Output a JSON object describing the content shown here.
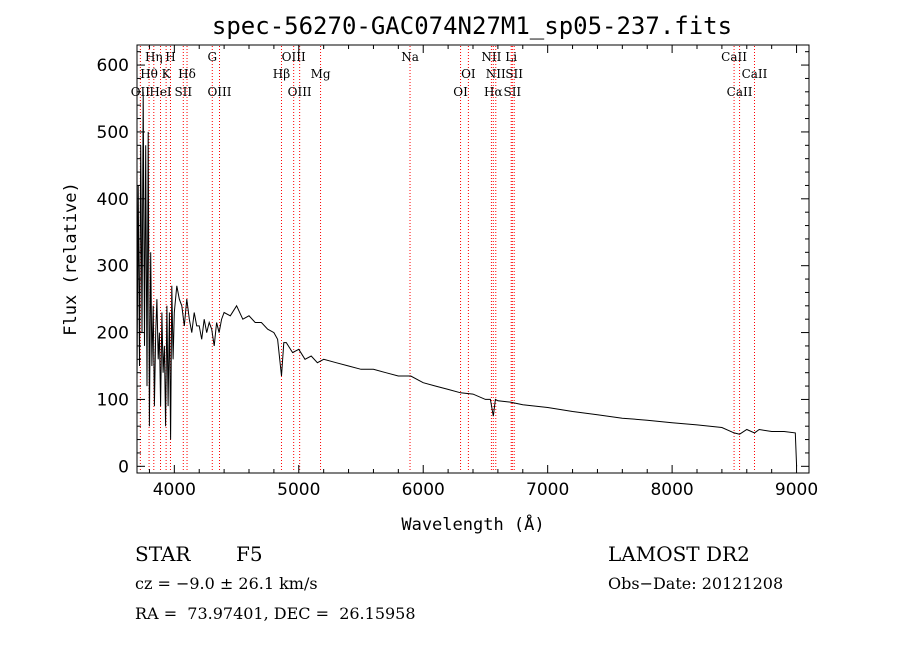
{
  "chart_data": {
    "type": "line",
    "title": "spec-56270-GAC074N27M1_sp05-237.fits",
    "xlabel": "Wavelength (Å)",
    "ylabel": "Flux (relative)",
    "xlim": [
      3700,
      9100
    ],
    "ylim": [
      -10,
      630
    ],
    "xticks": [
      4000,
      5000,
      6000,
      7000,
      8000,
      9000
    ],
    "yticks": [
      0,
      100,
      200,
      300,
      400,
      500,
      600
    ],
    "grid": false,
    "series": [
      {
        "x": [
          3700,
          3710,
          3720,
          3730,
          3740,
          3750,
          3760,
          3770,
          3780,
          3790,
          3800,
          3810,
          3820,
          3830,
          3840,
          3850,
          3860,
          3870,
          3880,
          3890,
          3900,
          3910,
          3920,
          3930,
          3940,
          3950,
          3960,
          3970,
          3980,
          3990,
          4000,
          4020,
          4040,
          4060,
          4080,
          4100,
          4120,
          4140,
          4160,
          4180,
          4200,
          4220,
          4240,
          4260,
          4280,
          4300,
          4320,
          4340,
          4360,
          4380,
          4400,
          4450,
          4500,
          4550,
          4600,
          4650,
          4700,
          4750,
          4800,
          4830,
          4861,
          4880,
          4900,
          4950,
          5000,
          5050,
          5100,
          5150,
          5200,
          5300,
          5400,
          5500,
          5600,
          5700,
          5800,
          5900,
          6000,
          6100,
          6200,
          6300,
          6400,
          6500,
          6540,
          6563,
          6580,
          6600,
          6700,
          6800,
          6900,
          7000,
          7200,
          7400,
          7600,
          7800,
          8000,
          8200,
          8400,
          8498,
          8542,
          8600,
          8662,
          8700,
          8800,
          8900,
          8990,
          9000
        ],
        "y": [
          130,
          420,
          150,
          480,
          200,
          560,
          180,
          480,
          120,
          500,
          60,
          320,
          150,
          240,
          90,
          200,
          250,
          160,
          200,
          90,
          230,
          140,
          180,
          60,
          240,
          90,
          230,
          40,
          270,
          160,
          230,
          270,
          250,
          240,
          210,
          250,
          220,
          200,
          230,
          210,
          210,
          190,
          220,
          200,
          215,
          205,
          180,
          215,
          200,
          220,
          230,
          225,
          240,
          220,
          225,
          215,
          215,
          205,
          200,
          190,
          135,
          185,
          185,
          170,
          175,
          160,
          165,
          155,
          160,
          155,
          150,
          145,
          145,
          140,
          135,
          135,
          125,
          120,
          115,
          110,
          108,
          100,
          100,
          75,
          100,
          98,
          96,
          92,
          90,
          88,
          82,
          77,
          72,
          69,
          65,
          62,
          58,
          50,
          48,
          55,
          50,
          55,
          52,
          52,
          50,
          0
        ]
      }
    ],
    "lines": [
      {
        "name": "OII",
        "wl": 3727,
        "row": 3
      },
      {
        "name": "Hθ",
        "wl": 3797,
        "row": 2
      },
      {
        "name": "Hη",
        "wl": 3835,
        "row": 1
      },
      {
        "name": "K",
        "wl": 3934,
        "row": 2
      },
      {
        "name": "HeI",
        "wl": 3889,
        "row": 3
      },
      {
        "name": "H",
        "wl": 3969,
        "row": 1
      },
      {
        "name": "SII",
        "wl": 4072,
        "row": 3
      },
      {
        "name": "Hδ",
        "wl": 4102,
        "row": 2
      },
      {
        "name": "G",
        "wl": 4305,
        "row": 1
      },
      {
        "name": "OIII",
        "wl": 4363,
        "row": 3
      },
      {
        "name": "Hβ",
        "wl": 4861,
        "row": 2
      },
      {
        "name": "OIII",
        "wl": 4959,
        "row": 1
      },
      {
        "name": "OIII",
        "wl": 5007,
        "row": 3
      },
      {
        "name": "Mg",
        "wl": 5175,
        "row": 2
      },
      {
        "name": "Na",
        "wl": 5894,
        "row": 1
      },
      {
        "name": "OI",
        "wl": 6300,
        "row": 3
      },
      {
        "name": "OI",
        "wl": 6363,
        "row": 2
      },
      {
        "name": "NII",
        "wl": 6548,
        "row": 1
      },
      {
        "name": "Hα",
        "wl": 6563,
        "row": 3
      },
      {
        "name": "NII",
        "wl": 6583,
        "row": 2
      },
      {
        "name": "Li",
        "wl": 6707,
        "row": 1
      },
      {
        "name": "SII",
        "wl": 6716,
        "row": 3
      },
      {
        "name": "SII",
        "wl": 6731,
        "row": 2
      },
      {
        "name": "CaII",
        "wl": 8498,
        "row": 1
      },
      {
        "name": "CaII",
        "wl": 8542,
        "row": 3
      },
      {
        "name": "CaII",
        "wl": 8662,
        "row": 2
      }
    ],
    "colors": {
      "spectrum": "#000000",
      "line_marker": "#ff0000",
      "frame": "#000000"
    }
  },
  "footer": {
    "object_class": "STAR",
    "subclass": "F5",
    "redshift": "cz = −9.0 ± 26.1 km/s",
    "coords": "RA =  73.97401, DEC =  26.15958",
    "survey": "LAMOST DR2",
    "obs_date": "Obs−Date: 20121208"
  }
}
